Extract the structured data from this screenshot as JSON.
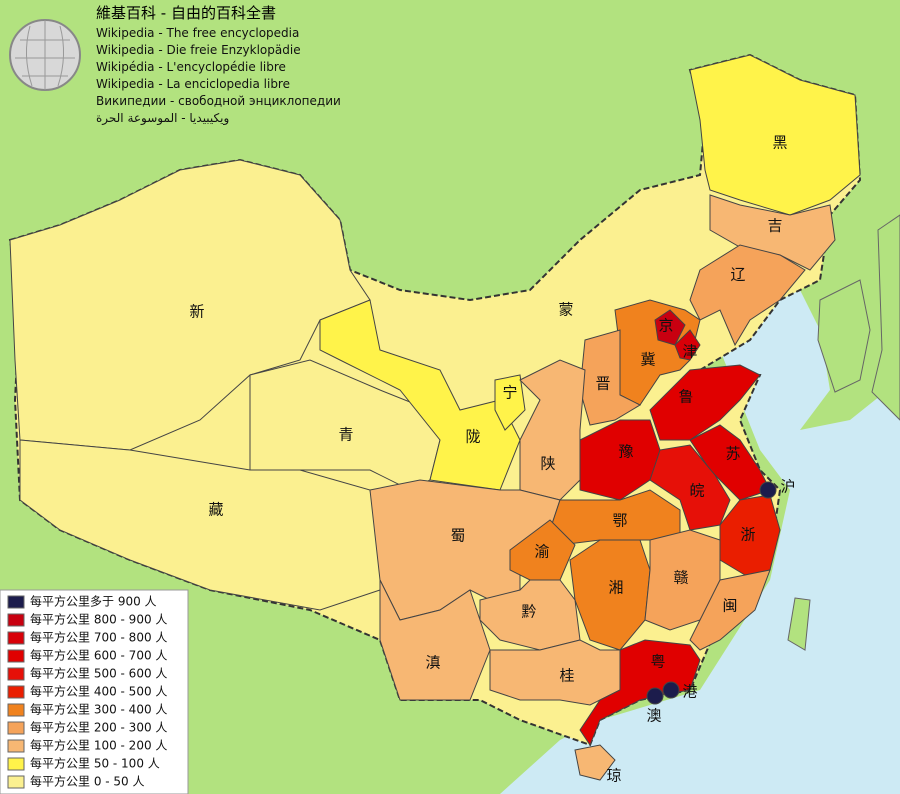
{
  "header": {
    "title": "維基百科 - 自由的百科全書",
    "lines": [
      "Wikipedia - The free encyclopedia",
      "Wikipedia - Die freie Enzyklopädie",
      "Wikipédia - L'encyclopédie libre",
      "Wikipedia - La enciclopedia libre",
      "Википедии - свободной энциклопедии",
      "ويكيبيديا - الموسوعة الحرة"
    ]
  },
  "legend": {
    "items": [
      {
        "label": "每平方公里多于 900 人",
        "color": "#1c1c4c"
      },
      {
        "label": "每平方公里 800 - 900 人",
        "color": "#c80010"
      },
      {
        "label": "每平方公里 700 - 800 人",
        "color": "#d80008"
      },
      {
        "label": "每平方公里 600 - 700 人",
        "color": "#e00000"
      },
      {
        "label": "每平方公里 500 - 600 人",
        "color": "#e61008"
      },
      {
        "label": "每平方公里 400 - 500 人",
        "color": "#ea1e00"
      },
      {
        "label": "每平方公里 300 - 400 人",
        "color": "#f0821e"
      },
      {
        "label": "每平方公里 200 - 300 人",
        "color": "#f5a35a"
      },
      {
        "label": "每平方公里 100 - 200 人",
        "color": "#f7b773"
      },
      {
        "label": "每平方公里 50 - 100 人",
        "color": "#fff34a"
      },
      {
        "label": "每平方公里 0 - 50 人",
        "color": "#fbf090"
      }
    ]
  },
  "provinces": [
    {
      "label": "新",
      "color": "#fbf090"
    },
    {
      "label": "藏",
      "color": "#fbf090"
    },
    {
      "label": "蒙",
      "color": "#fbf090"
    },
    {
      "label": "青",
      "color": "#fbf090"
    },
    {
      "label": "黑",
      "color": "#fff34a"
    },
    {
      "label": "吉",
      "color": "#f7b773"
    },
    {
      "label": "辽",
      "color": "#f5a35a"
    },
    {
      "label": "冀",
      "color": "#f0821e"
    },
    {
      "label": "京",
      "color": "#c80010"
    },
    {
      "label": "津",
      "color": "#d80008"
    },
    {
      "label": "晋",
      "color": "#f5a35a"
    },
    {
      "label": "鲁",
      "color": "#e00000"
    },
    {
      "label": "陇",
      "color": "#fff34a"
    },
    {
      "label": "宁",
      "color": "#fff34a"
    },
    {
      "label": "陕",
      "color": "#f7b773"
    },
    {
      "label": "豫",
      "color": "#e00000"
    },
    {
      "label": "苏",
      "color": "#e00000"
    },
    {
      "label": "皖",
      "color": "#e61008"
    },
    {
      "label": "蜀",
      "color": "#f7b773"
    },
    {
      "label": "鄂",
      "color": "#f0821e"
    },
    {
      "label": "渝",
      "color": "#f0821e"
    },
    {
      "label": "湘",
      "color": "#f0821e"
    },
    {
      "label": "赣",
      "color": "#f5a35a"
    },
    {
      "label": "浙",
      "color": "#ea1e00"
    },
    {
      "label": "闽",
      "color": "#f5a35a"
    },
    {
      "label": "黔",
      "color": "#f7b773"
    },
    {
      "label": "滇",
      "color": "#f7b773"
    },
    {
      "label": "桂",
      "color": "#f7b773"
    },
    {
      "label": "粤",
      "color": "#e00000"
    },
    {
      "label": "琼",
      "color": "#f7b773"
    },
    {
      "label": "沪",
      "color": "#1c1c4c"
    },
    {
      "label": "港",
      "color": "#1c1c4c"
    },
    {
      "label": "澳",
      "color": "#1c1c4c"
    }
  ]
}
